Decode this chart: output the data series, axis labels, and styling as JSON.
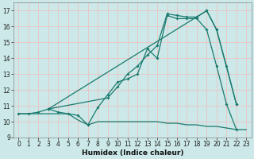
{
  "title": "",
  "xlabel": "Humidex (Indice chaleur)",
  "bg_color": "#cce8e8",
  "line_color": "#1a7a6e",
  "grid_color": "#e8c8c8",
  "xlim": [
    -0.5,
    23.5
  ],
  "ylim": [
    9,
    17.5
  ],
  "yticks": [
    9,
    10,
    11,
    12,
    13,
    14,
    15,
    16,
    17
  ],
  "xticks": [
    0,
    1,
    2,
    3,
    4,
    5,
    6,
    7,
    8,
    9,
    10,
    11,
    12,
    13,
    14,
    15,
    16,
    17,
    18,
    19,
    20,
    21,
    22,
    23
  ],
  "lines": [
    {
      "x": [
        0,
        1,
        2,
        3,
        4,
        5,
        6,
        7,
        8,
        9,
        10,
        11,
        12,
        13,
        14,
        15,
        16,
        17,
        18,
        19,
        20,
        21,
        22,
        23
      ],
      "y": [
        10.5,
        10.5,
        10.5,
        10.5,
        10.5,
        10.5,
        10.1,
        9.8,
        10.0,
        10.0,
        10.0,
        10.0,
        10.0,
        10.0,
        10.0,
        9.9,
        9.9,
        9.8,
        9.8,
        9.7,
        9.7,
        9.6,
        9.5,
        9.5
      ],
      "markers": false
    },
    {
      "x": [
        0,
        1,
        2,
        3,
        4,
        5,
        6,
        7,
        8,
        9,
        10,
        11,
        12,
        13,
        14,
        15,
        16,
        17,
        18,
        19,
        20,
        21,
        22
      ],
      "y": [
        10.5,
        10.5,
        10.6,
        10.8,
        10.6,
        10.5,
        10.4,
        9.8,
        10.9,
        11.7,
        12.5,
        12.7,
        13.0,
        14.6,
        14.0,
        16.7,
        16.5,
        16.5,
        16.5,
        15.8,
        13.5,
        11.1,
        9.5
      ],
      "markers": true
    },
    {
      "x": [
        3,
        9,
        10,
        11,
        12,
        13,
        14,
        15,
        16,
        17,
        18,
        19,
        20,
        21,
        22
      ],
      "y": [
        10.8,
        11.5,
        12.2,
        13.0,
        13.5,
        14.2,
        14.8,
        16.8,
        16.7,
        16.6,
        16.6,
        17.0,
        15.8,
        13.5,
        11.1
      ],
      "markers": true
    },
    {
      "x": [
        3,
        19,
        20,
        22
      ],
      "y": [
        10.8,
        17.0,
        15.8,
        11.1
      ],
      "markers": true
    }
  ]
}
